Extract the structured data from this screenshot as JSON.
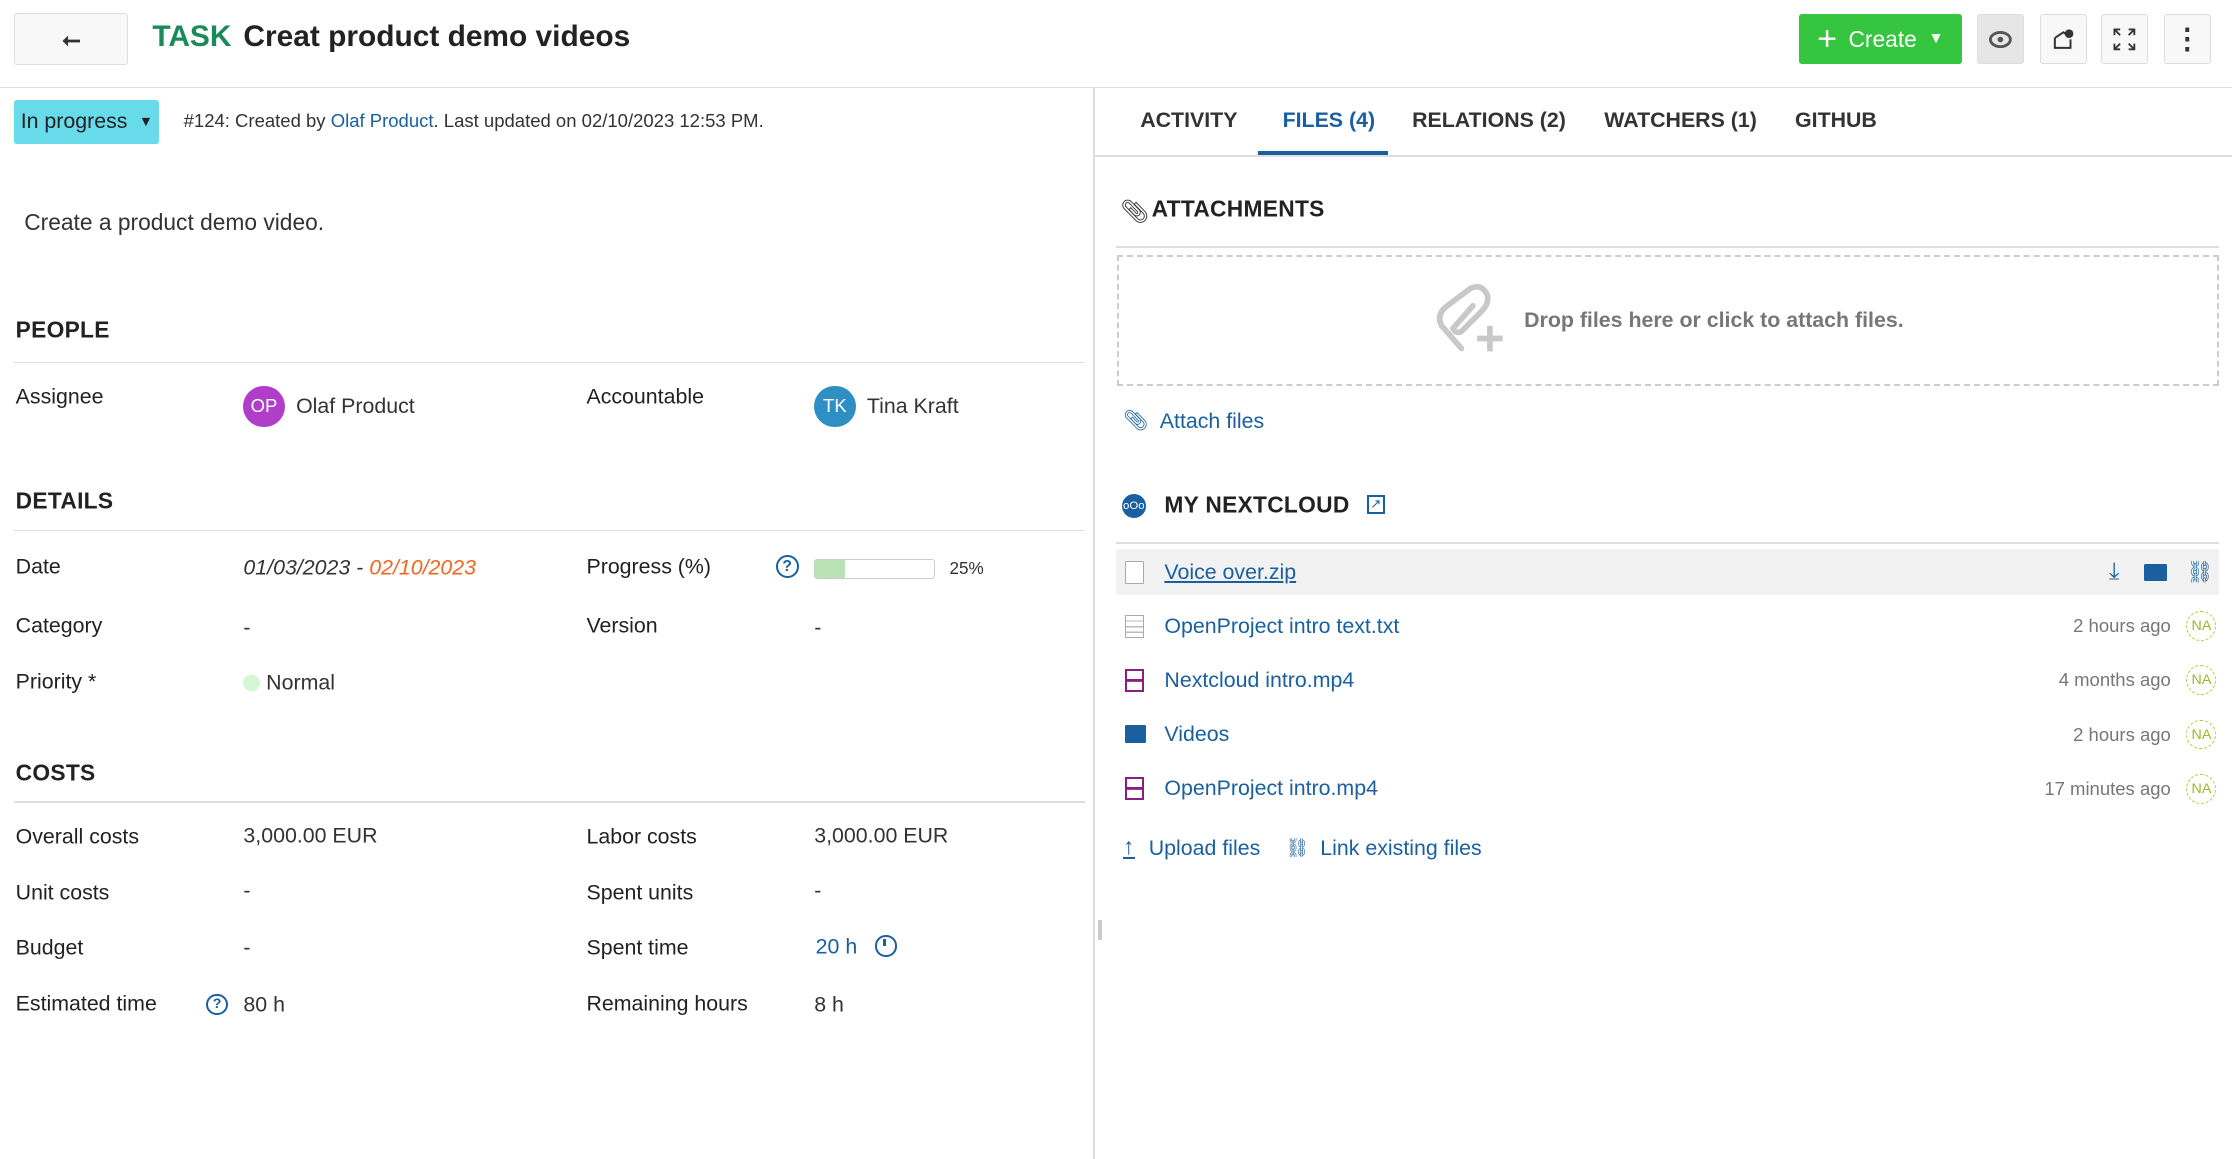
{
  "header": {
    "type": "TASK",
    "title": "Creat product demo videos",
    "create_label": "Create",
    "back_icon": "back-arrow-icon"
  },
  "status": {
    "label": "In progress",
    "color": "#67dbe9"
  },
  "meta": {
    "prefix": "#124: Created by ",
    "author": "Olaf Product",
    "suffix": ". Last updated on 02/10/2023 12:53 PM."
  },
  "description": "Create a product demo video.",
  "people": {
    "title": "PEOPLE",
    "assignee_label": "Assignee",
    "assignee": {
      "initials": "OP",
      "name": "Olaf Product",
      "color": "#b03ec9"
    },
    "accountable_label": "Accountable",
    "accountable": {
      "initials": "TK",
      "name": "Tina Kraft",
      "color": "#2d8fc4"
    }
  },
  "details": {
    "title": "DETAILS",
    "date_label": "Date",
    "date_start": "01/03/2023",
    "date_sep": " - ",
    "date_end": "02/10/2023",
    "progress_label": "Progress (%)",
    "progress": 25,
    "progress_text": "25%",
    "category_label": "Category",
    "category": "-",
    "version_label": "Version",
    "version": "-",
    "priority_label": "Priority *",
    "priority": "Normal"
  },
  "costs": {
    "title": "COSTS",
    "overall_label": "Overall costs",
    "overall": "3,000.00 EUR",
    "labor_label": "Labor costs",
    "labor": "3,000.00 EUR",
    "unit_label": "Unit costs",
    "unit": "-",
    "spent_units_label": "Spent units",
    "spent_units": "-",
    "budget_label": "Budget",
    "budget": "-",
    "spent_time_label": "Spent time",
    "spent_time": "20 h",
    "estimated_label": "Estimated time",
    "estimated": "80 h",
    "remaining_label": "Remaining hours",
    "remaining": "8 h"
  },
  "tabs": [
    {
      "label": "ACTIVITY"
    },
    {
      "label": "FILES (4)",
      "active": true
    },
    {
      "label": "RELATIONS (2)"
    },
    {
      "label": "WATCHERS (1)"
    },
    {
      "label": "GITHUB"
    }
  ],
  "attachments": {
    "title": "ATTACHMENTS",
    "drop_text": "Drop files here or click to attach files.",
    "attach_label": "Attach files"
  },
  "nextcloud": {
    "title": "MY NEXTCLOUD",
    "files": [
      {
        "name": "Voice over.zip",
        "time": "",
        "icon": "file-icon"
      },
      {
        "name": "OpenProject intro text.txt",
        "time": "2 hours ago",
        "user": "NA",
        "icon": "text-file-icon"
      },
      {
        "name": "Nextcloud intro.mp4",
        "time": "4 months ago",
        "user": "NA",
        "icon": "video-file-icon"
      },
      {
        "name": "Videos",
        "time": "2 hours ago",
        "user": "NA",
        "icon": "folder-icon"
      },
      {
        "name": "OpenProject intro.mp4",
        "time": "17 minutes ago",
        "user": "NA",
        "icon": "video-file-icon"
      }
    ],
    "upload_label": "Upload files",
    "link_label": "Link existing files"
  }
}
